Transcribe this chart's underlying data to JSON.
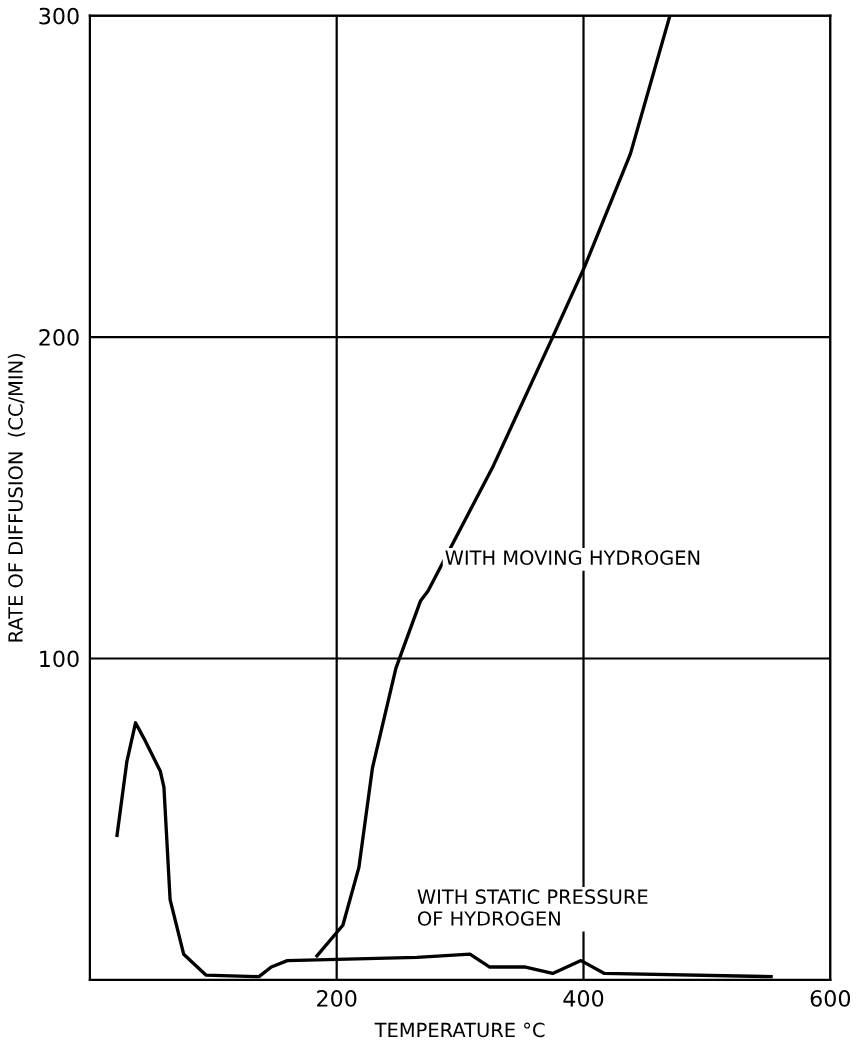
{
  "chart_data": {
    "type": "line",
    "xlabel": "TEMPERATURE °C",
    "ylabel": "RATE OF DIFFUSION  (CC/MIN)",
    "xlim": [
      0,
      600
    ],
    "ylim": [
      0,
      300
    ],
    "xticks": [
      200,
      400,
      600
    ],
    "yticks": [
      100,
      200,
      300
    ],
    "grid": true,
    "marker": "none",
    "line_style": "solid",
    "series": [
      {
        "color": "#000000",
        "x": [
          184,
          205,
          218,
          229,
          248,
          268,
          274,
          327,
          375,
          401,
          438,
          470
        ],
        "values": [
          7.5,
          17,
          35,
          66,
          97,
          118,
          121,
          160,
          200,
          222,
          257,
          300
        ]
      },
      {
        "color": "#000000",
        "x": [
          22,
          30,
          37,
          44,
          57,
          60,
          65,
          76,
          94,
          137,
          147,
          160,
          265,
          308,
          324,
          353,
          375,
          398,
          417,
          552
        ],
        "values": [
          45,
          68,
          80,
          75,
          65,
          60,
          25,
          8,
          1.5,
          1,
          4,
          6,
          7,
          8,
          4,
          4,
          2,
          6,
          2,
          1
        ]
      }
    ],
    "annotations": [
      {
        "text": "WITH MOVING HYDROGEN",
        "x": 274,
        "y": 121
      },
      {
        "text": "WITH STATIC PRESSURE\nOF HYDROGEN",
        "x": 265,
        "y": 7
      }
    ]
  }
}
